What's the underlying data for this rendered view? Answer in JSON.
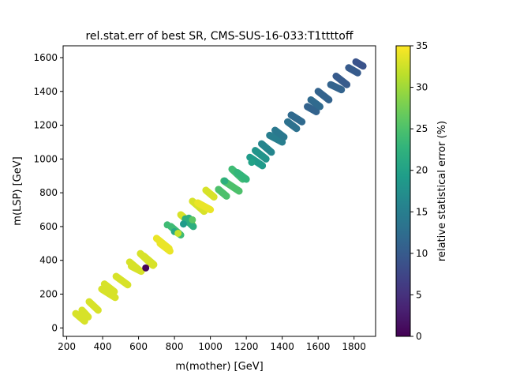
{
  "chart_data": {
    "type": "scatter",
    "title": "rel.stat.err of best SR, CMS-SUS-16-033:T1ttttoff",
    "xlabel": "m(mother) [GeV]",
    "ylabel": "m(LSP) [GeV]",
    "xlim": [
      180,
      1920
    ],
    "ylim": [
      -50,
      1670
    ],
    "xticks": [
      200,
      400,
      600,
      800,
      1000,
      1200,
      1400,
      1600,
      1800
    ],
    "yticks": [
      0,
      200,
      400,
      600,
      800,
      1000,
      1200,
      1400,
      1600
    ],
    "grid": false,
    "colorbar": {
      "label": "relative statistical error (%)",
      "min": 0,
      "max": 35,
      "ticks": [
        0,
        5,
        10,
        15,
        20,
        25,
        30,
        35
      ],
      "colormap": "viridis"
    },
    "segments": [
      {
        "x": [
          250,
          300
        ],
        "y": [
          85,
          40
        ],
        "c": 33
      },
      {
        "x": [
          285,
          320
        ],
        "y": [
          105,
          65
        ],
        "c": 33
      },
      {
        "x": [
          325,
          375
        ],
        "y": [
          155,
          105
        ],
        "c": 33
      },
      {
        "x": [
          395,
          470
        ],
        "y": [
          230,
          180
        ],
        "c": 33
      },
      {
        "x": [
          410,
          465
        ],
        "y": [
          260,
          215
        ],
        "c": 33
      },
      {
        "x": [
          475,
          540
        ],
        "y": [
          305,
          255
        ],
        "c": 33
      },
      {
        "x": [
          550,
          600
        ],
        "y": [
          390,
          345
        ],
        "c": 33
      },
      {
        "x": [
          560,
          615
        ],
        "y": [
          365,
          335
        ],
        "c": 33
      },
      {
        "x": [
          610,
          680
        ],
        "y": [
          440,
          370
        ],
        "c": 33
      },
      {
        "x": [
          630,
          685
        ],
        "y": [
          425,
          375
        ],
        "c": 33
      },
      {
        "x": [
          700,
          770
        ],
        "y": [
          530,
          470
        ],
        "c": 34
      },
      {
        "x": [
          720,
          775
        ],
        "y": [
          500,
          455
        ],
        "c": 34
      },
      {
        "x": [
          780,
          835
        ],
        "y": [
          600,
          550
        ],
        "c": 24
      },
      {
        "x": [
          835,
          900
        ],
        "y": [
          670,
          610
        ],
        "c": 33
      },
      {
        "x": [
          860,
          905
        ],
        "y": [
          645,
          600
        ],
        "c": 22
      },
      {
        "x": [
          900,
          965
        ],
        "y": [
          750,
          690
        ],
        "c": 33
      },
      {
        "x": [
          930,
          1000
        ],
        "y": [
          740,
          700
        ],
        "c": 34
      },
      {
        "x": [
          975,
          1020
        ],
        "y": [
          815,
          775
        ],
        "c": 33
      },
      {
        "x": [
          1045,
          1090
        ],
        "y": [
          820,
          780
        ],
        "c": 25
      },
      {
        "x": [
          1075,
          1160
        ],
        "y": [
          870,
          810
        ],
        "c": 25
      },
      {
        "x": [
          1120,
          1180
        ],
        "y": [
          940,
          880
        ],
        "c": 24
      },
      {
        "x": [
          1150,
          1200
        ],
        "y": [
          920,
          880
        ],
        "c": 23
      },
      {
        "x": [
          1220,
          1290
        ],
        "y": [
          1010,
          960
        ],
        "c": 19
      },
      {
        "x": [
          1250,
          1310
        ],
        "y": [
          1050,
          1000
        ],
        "c": 18
      },
      {
        "x": [
          1285,
          1340
        ],
        "y": [
          1090,
          1040
        ],
        "c": 16
      },
      {
        "x": [
          1330,
          1400
        ],
        "y": [
          1140,
          1100
        ],
        "c": 15
      },
      {
        "x": [
          1360,
          1410
        ],
        "y": [
          1170,
          1130
        ],
        "c": 14
      },
      {
        "x": [
          1430,
          1480
        ],
        "y": [
          1220,
          1180
        ],
        "c": 13
      },
      {
        "x": [
          1450,
          1510
        ],
        "y": [
          1260,
          1220
        ],
        "c": 12
      },
      {
        "x": [
          1540,
          1590
        ],
        "y": [
          1310,
          1280
        ],
        "c": 11
      },
      {
        "x": [
          1560,
          1610
        ],
        "y": [
          1350,
          1310
        ],
        "c": 12
      },
      {
        "x": [
          1600,
          1660
        ],
        "y": [
          1400,
          1350
        ],
        "c": 11
      },
      {
        "x": [
          1670,
          1730
        ],
        "y": [
          1440,
          1410
        ],
        "c": 11
      },
      {
        "x": [
          1700,
          1760
        ],
        "y": [
          1490,
          1440
        ],
        "c": 10
      },
      {
        "x": [
          1770,
          1820
        ],
        "y": [
          1540,
          1510
        ],
        "c": 10
      },
      {
        "x": [
          1810,
          1850
        ],
        "y": [
          1575,
          1550
        ],
        "c": 9
      }
    ],
    "points": [
      {
        "x": 640,
        "y": 355,
        "c": 0.5
      },
      {
        "x": 760,
        "y": 610,
        "c": 24
      },
      {
        "x": 800,
        "y": 570,
        "c": 21
      },
      {
        "x": 850,
        "y": 615,
        "c": 19
      },
      {
        "x": 880,
        "y": 650,
        "c": 22
      },
      {
        "x": 900,
        "y": 640,
        "c": 26
      },
      {
        "x": 820,
        "y": 560,
        "c": 32
      },
      {
        "x": 1080,
        "y": 870,
        "c": 22
      },
      {
        "x": 1230,
        "y": 980,
        "c": 20
      }
    ]
  }
}
